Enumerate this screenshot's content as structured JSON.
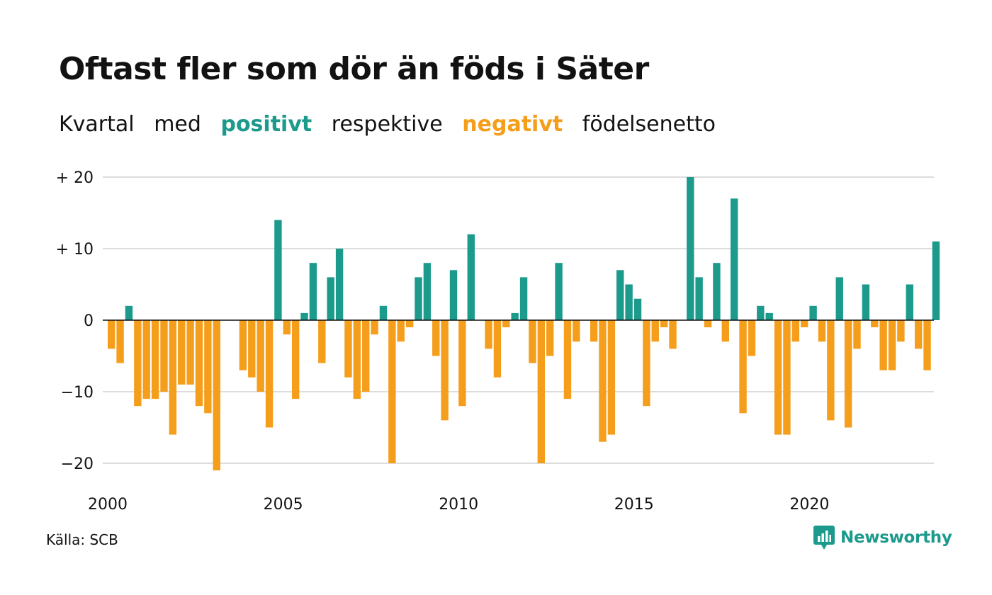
{
  "title": "Oftast fler som dör än föds i Säter",
  "subtitle": {
    "part1": "Kvartal",
    "part2": "med",
    "positive": "positivt",
    "part3": "respektive",
    "negative": "negativt",
    "part4": "födelsenetto"
  },
  "source": "Källa: SCB",
  "brand": "Newsworthy",
  "colors": {
    "positive": "#1c9a8c",
    "negative": "#f59e1c",
    "grid": "#dddddd",
    "zero_line": "#111111",
    "text": "#121212"
  },
  "chart_data": {
    "type": "bar",
    "x_start": "2000 Q1",
    "x_step": "quarter",
    "values": [
      -4,
      -6,
      2,
      -12,
      -11,
      -11,
      -10,
      -16,
      -9,
      -9,
      -12,
      -13,
      -21,
      0,
      0,
      -7,
      -8,
      -10,
      -15,
      14,
      -2,
      -11,
      1,
      8,
      -6,
      6,
      10,
      -8,
      -11,
      -10,
      -2,
      2,
      -20,
      -3,
      -1,
      6,
      8,
      -5,
      -14,
      7,
      -12,
      12,
      0,
      -4,
      -8,
      -1,
      1,
      6,
      -6,
      -20,
      -5,
      8,
      -11,
      -3,
      0,
      -3,
      -17,
      -16,
      7,
      5,
      3,
      -12,
      -3,
      -1,
      -4,
      0,
      20,
      6,
      -1,
      8,
      -3,
      17,
      -13,
      -5,
      2,
      1,
      -16,
      -16,
      -3,
      -1,
      2,
      -3,
      -14,
      6,
      -15,
      -4,
      5,
      -1,
      -7,
      -7,
      -3,
      5,
      -4,
      -7,
      11
    ],
    "ylim": [
      -23,
      20
    ],
    "yticks": [
      {
        "value": 20,
        "label": "+ 20"
      },
      {
        "value": 10,
        "label": "+ 10"
      },
      {
        "value": 0,
        "label": "0"
      },
      {
        "value": -10,
        "label": "−10"
      },
      {
        "value": -20,
        "label": "−20"
      }
    ],
    "xticks": [
      {
        "year": 2000,
        "label": "2000"
      },
      {
        "year": 2005,
        "label": "2005"
      },
      {
        "year": 2010,
        "label": "2010"
      },
      {
        "year": 2015,
        "label": "2015"
      },
      {
        "year": 2020,
        "label": "2020"
      }
    ],
    "grid": true,
    "legend": "none"
  }
}
